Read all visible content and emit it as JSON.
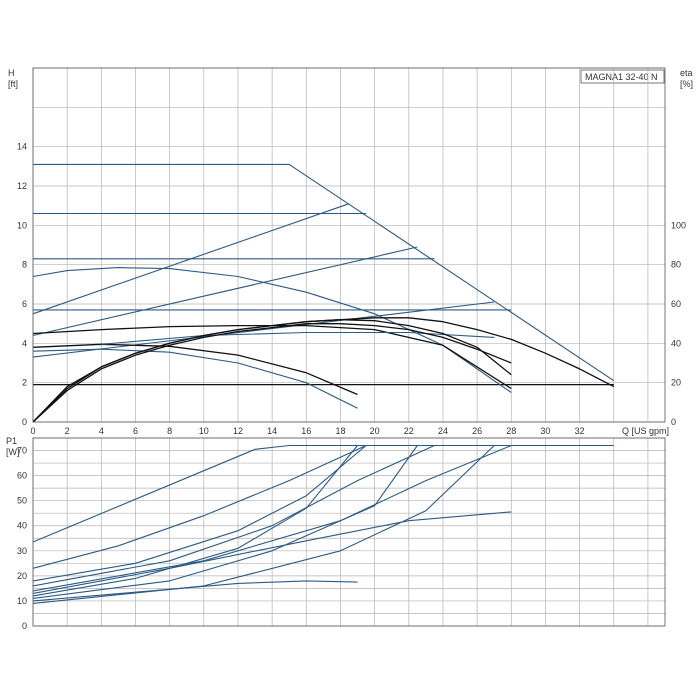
{
  "colors": {
    "blue": "#2b5a86",
    "black": "#111111",
    "grid": "#b4b4b4",
    "frame": "#555555"
  },
  "chart_data": [
    {
      "type": "line",
      "title": "MAGNA1 32-40 N",
      "y_axis_title": "H",
      "y_axis_unit": "[ft]",
      "y2_axis_title": "eta",
      "y2_axis_unit": "[%]",
      "x_axis_label": "Q [US gpm]",
      "xlim": [
        0,
        37
      ],
      "ylim": [
        0,
        18
      ],
      "y2lim": [
        0,
        180
      ],
      "x_ticks": [
        0,
        2,
        4,
        6,
        8,
        10,
        12,
        14,
        16,
        18,
        20,
        22,
        24,
        26,
        28,
        30,
        32
      ],
      "y_ticks": [
        0,
        2,
        4,
        6,
        8,
        10,
        12,
        14
      ],
      "y2_ticks": [
        0,
        20,
        40,
        60,
        80,
        100
      ],
      "x_grid": [
        0,
        2,
        4,
        6,
        8,
        10,
        12,
        14,
        16,
        18,
        20,
        22,
        24,
        26,
        28,
        30,
        32,
        34,
        36
      ],
      "y_grid": [
        0,
        2,
        4,
        6,
        8,
        10,
        12,
        14,
        16,
        18
      ],
      "grid": true,
      "series": [
        {
          "color": "blue",
          "axis": "y",
          "points": [
            [
              0,
              13.1
            ],
            [
              15,
              13.1
            ],
            [
              34,
              2.1
            ]
          ]
        },
        {
          "color": "blue",
          "axis": "y",
          "points": [
            [
              0,
              10.6
            ],
            [
              19.5,
              10.6
            ]
          ]
        },
        {
          "color": "blue",
          "axis": "y",
          "points": [
            [
              0,
              8.3
            ],
            [
              23.5,
              8.3
            ]
          ]
        },
        {
          "color": "blue",
          "axis": "y",
          "points": [
            [
              0,
              5.7
            ],
            [
              28,
              5.7
            ]
          ]
        },
        {
          "color": "black",
          "axis": "y",
          "points": [
            [
              0,
              1.9
            ],
            [
              34,
              1.9
            ]
          ]
        },
        {
          "color": "blue",
          "axis": "y",
          "points": [
            [
              0,
              5.5
            ],
            [
              18.5,
              11.1
            ]
          ]
        },
        {
          "color": "blue",
          "axis": "y",
          "points": [
            [
              0,
              4.4
            ],
            [
              22.5,
              8.9
            ]
          ]
        },
        {
          "color": "blue",
          "axis": "y",
          "points": [
            [
              0,
              3.3
            ],
            [
              27,
              6.1
            ]
          ]
        },
        {
          "color": "blue",
          "axis": "y",
          "points": [
            [
              0,
              7.4
            ],
            [
              2,
              7.7
            ],
            [
              5,
              7.85
            ],
            [
              8,
              7.8
            ],
            [
              12,
              7.4
            ],
            [
              16,
              6.6
            ],
            [
              20,
              5.5
            ],
            [
              24,
              3.9
            ],
            [
              28,
              1.5
            ]
          ]
        },
        {
          "color": "blue",
          "axis": "y",
          "points": [
            [
              0,
              3.6
            ],
            [
              4,
              3.7
            ],
            [
              8,
              3.55
            ],
            [
              12,
              3.0
            ],
            [
              16,
              2.0
            ],
            [
              19,
              0.7
            ]
          ]
        },
        {
          "color": "black",
          "axis": "y",
          "points": [
            [
              0,
              3.8
            ],
            [
              4,
              3.95
            ],
            [
              8,
              3.85
            ],
            [
              12,
              3.4
            ],
            [
              16,
              2.5
            ],
            [
              19,
              1.4
            ]
          ]
        },
        {
          "color": "black",
          "axis": "y",
          "points": [
            [
              0,
              4.5
            ],
            [
              4,
              4.7
            ],
            [
              8,
              4.85
            ],
            [
              12,
              4.9
            ],
            [
              16,
              4.9
            ],
            [
              20,
              4.7
            ],
            [
              24,
              3.9
            ],
            [
              28,
              1.7
            ]
          ]
        },
        {
          "color": "blue",
          "axis": "y",
          "points": [
            [
              4,
              3.95
            ],
            [
              10,
              4.4
            ],
            [
              16,
              4.55
            ],
            [
              22,
              4.55
            ],
            [
              27,
              4.3
            ]
          ]
        },
        {
          "color": "black",
          "axis": "y2",
          "points": [
            [
              0,
              0
            ],
            [
              2,
              18
            ],
            [
              4,
              28
            ],
            [
              6,
              35
            ],
            [
              8,
              40
            ],
            [
              10,
              44
            ],
            [
              12,
              47
            ],
            [
              14,
              49
            ],
            [
              16,
              51
            ],
            [
              18,
              52
            ],
            [
              20,
              53
            ],
            [
              22,
              53
            ],
            [
              24,
              51
            ],
            [
              26,
              47
            ],
            [
              28,
              42
            ],
            [
              30,
              35
            ],
            [
              32,
              27
            ],
            [
              34,
              18
            ]
          ]
        },
        {
          "color": "black",
          "axis": "y2",
          "points": [
            [
              0,
              0
            ],
            [
              2,
              16
            ],
            [
              4,
              27
            ],
            [
              6,
              34
            ],
            [
              8,
              39
            ],
            [
              10,
              43
            ],
            [
              12,
              46
            ],
            [
              14,
              48
            ],
            [
              16,
              50
            ],
            [
              18,
              50
            ],
            [
              20,
              49
            ],
            [
              22,
              47
            ],
            [
              24,
              43
            ],
            [
              26,
              37
            ],
            [
              28,
              30
            ]
          ]
        },
        {
          "color": "black",
          "axis": "y2",
          "points": [
            [
              0,
              0
            ],
            [
              2,
              17
            ],
            [
              4,
              28
            ],
            [
              6,
              35
            ],
            [
              8,
              40
            ],
            [
              10,
              44
            ],
            [
              12,
              47
            ],
            [
              14,
              49
            ],
            [
              16,
              51
            ],
            [
              18,
              52
            ],
            [
              20,
              51.5
            ],
            [
              22,
              49
            ],
            [
              24,
              45
            ],
            [
              26,
              38
            ],
            [
              28,
              24
            ]
          ]
        }
      ]
    },
    {
      "type": "line",
      "y_axis_title": "P1",
      "y_axis_unit": "[W]",
      "xlim": [
        0,
        37
      ],
      "ylim": [
        0,
        75
      ],
      "y_ticks": [
        0,
        10,
        20,
        30,
        40,
        50,
        60,
        70
      ],
      "grid": true,
      "series": [
        {
          "color": "blue",
          "points": [
            [
              0,
              33.5
            ],
            [
              13,
              70.5
            ],
            [
              15,
              72
            ],
            [
              34,
              72
            ]
          ]
        },
        {
          "color": "blue",
          "points": [
            [
              0,
              23
            ],
            [
              5,
              32
            ],
            [
              10,
              44
            ],
            [
              15,
              58
            ],
            [
              19.5,
              72
            ]
          ]
        },
        {
          "color": "blue",
          "points": [
            [
              0,
              18
            ],
            [
              6,
              25
            ],
            [
              12,
              38
            ],
            [
              16,
              52
            ],
            [
              19.5,
              72
            ]
          ]
        },
        {
          "color": "blue",
          "points": [
            [
              0,
              12
            ],
            [
              6,
              19
            ],
            [
              12,
              31
            ],
            [
              16,
              47
            ],
            [
              19,
              72
            ]
          ]
        },
        {
          "color": "blue",
          "points": [
            [
              0,
              16
            ],
            [
              8,
              26
            ],
            [
              14,
              40
            ],
            [
              19,
              58
            ],
            [
              23.5,
              72
            ]
          ]
        },
        {
          "color": "blue",
          "points": [
            [
              0,
              11
            ],
            [
              8,
              18
            ],
            [
              14,
              30
            ],
            [
              20,
              48
            ],
            [
              22.5,
              72
            ]
          ]
        },
        {
          "color": "blue",
          "points": [
            [
              0,
              14
            ],
            [
              10,
              26
            ],
            [
              18,
              42
            ],
            [
              23,
              58
            ],
            [
              28,
              72
            ]
          ]
        },
        {
          "color": "blue",
          "points": [
            [
              0,
              9
            ],
            [
              10,
              16
            ],
            [
              18,
              30
            ],
            [
              23,
              46
            ],
            [
              27,
              72
            ]
          ]
        },
        {
          "color": "blue",
          "points": [
            [
              0,
              13
            ],
            [
              8,
              23
            ],
            [
              16,
              34
            ],
            [
              22,
              42
            ],
            [
              28,
              45.5
            ]
          ]
        },
        {
          "color": "blue",
          "points": [
            [
              0,
              10
            ],
            [
              6,
              13.5
            ],
            [
              12,
              17
            ],
            [
              16,
              18
            ],
            [
              19,
              17.5
            ]
          ]
        }
      ]
    }
  ]
}
